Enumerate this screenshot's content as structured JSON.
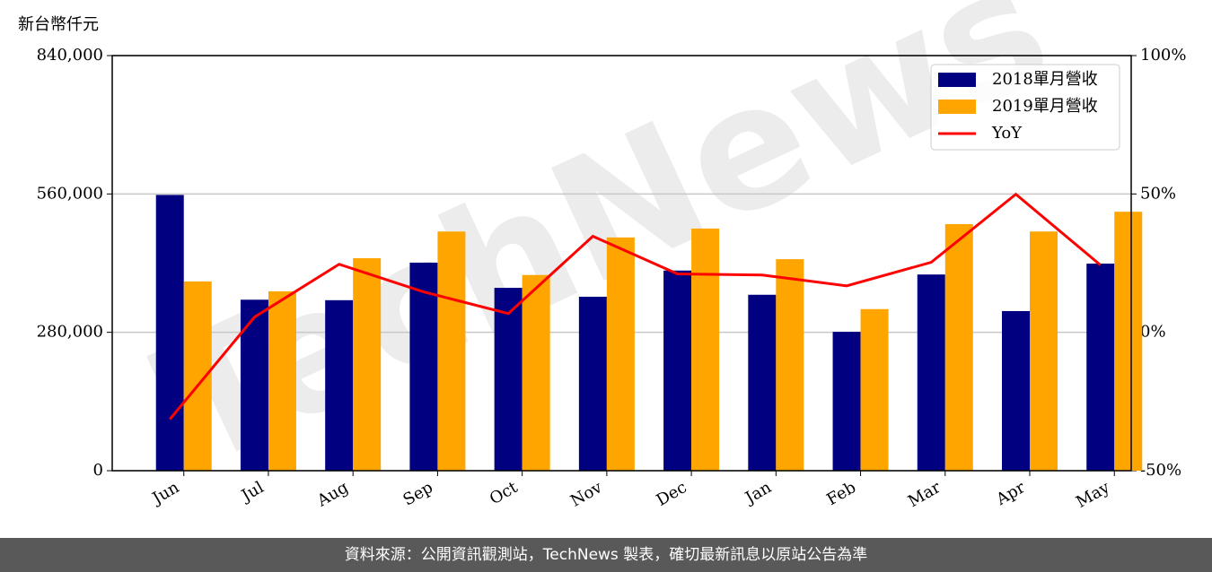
{
  "chart_data": {
    "type": "bar_line",
    "ylabel": "新台幣仟元",
    "watermark": "TechNews",
    "categories": [
      "Jun",
      "Jul",
      "Aug",
      "Sep",
      "Oct",
      "Nov",
      "Dec",
      "Jan",
      "Feb",
      "Mar",
      "Apr",
      "May"
    ],
    "series": [
      {
        "name": "2018單月營收",
        "color": "#000080",
        "type": "bar",
        "values": [
          558000,
          346000,
          345000,
          421000,
          370000,
          352000,
          405000,
          356000,
          281000,
          397000,
          323000,
          419000
        ]
      },
      {
        "name": "2019單月營收",
        "color": "#ffa500",
        "type": "bar",
        "values": [
          383000,
          363000,
          430000,
          484000,
          396000,
          472000,
          490000,
          428000,
          327000,
          499000,
          484000,
          524000
        ]
      },
      {
        "name": "YoY",
        "color": "#ff0000",
        "type": "line",
        "axis": "y2",
        "values": [
          -31.4,
          5.5,
          24.6,
          14.6,
          6.8,
          34.7,
          21.1,
          20.7,
          16.8,
          25.3,
          49.9,
          24.3
        ]
      }
    ],
    "ylim": [
      0,
      840000
    ],
    "yticks": [
      0,
      {
        "value": 280000,
        "label": "280,000"
      },
      {
        "value": 560000,
        "label": "560,000"
      },
      {
        "value": 840000,
        "label": "840,000"
      }
    ],
    "y2lim": [
      -50,
      100
    ],
    "y2ticks": [
      {
        "value": -50,
        "label": "-50%"
      },
      {
        "value": 0,
        "label": "0%"
      },
      {
        "value": 50,
        "label": "50%"
      },
      {
        "value": 100,
        "label": "100%"
      }
    ],
    "grid": true,
    "legend": "upper right"
  },
  "footer": "資料來源：公開資訊觀測站，TechNews 製表，確切最新訊息以原站公告為準"
}
